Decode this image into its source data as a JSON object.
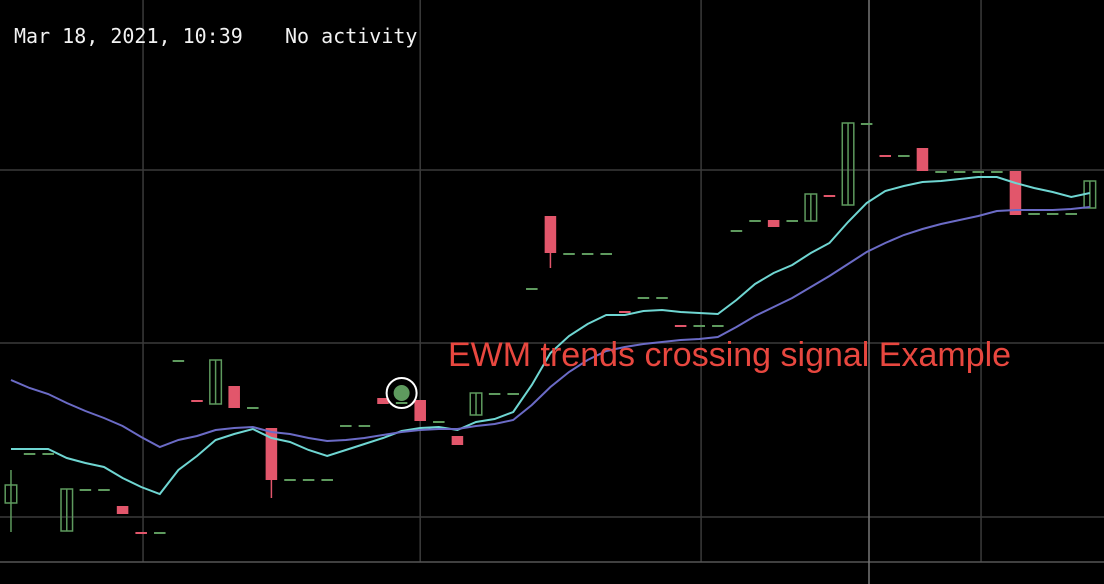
{
  "chart_data": {
    "type": "candlestick",
    "title": "Mar 18, 2021, 10:39",
    "status": "No activity",
    "annotation": "EWM trends crossing signal Example",
    "x": [
      0,
      1,
      2,
      3,
      4,
      5,
      6,
      7,
      8,
      9,
      10,
      11,
      12,
      13,
      14,
      15,
      16,
      17,
      18,
      19,
      20,
      21,
      22,
      23,
      24,
      25,
      26,
      27,
      28,
      29,
      30,
      31,
      32,
      33,
      34,
      35,
      36,
      37,
      38,
      39,
      40,
      41,
      42,
      43,
      44,
      45,
      46,
      47,
      48,
      49,
      50,
      51,
      52,
      53,
      54,
      55,
      56,
      57,
      58
    ],
    "open": [
      81,
      131,
      131,
      53,
      95,
      95,
      78,
      52,
      52,
      224,
      184,
      180,
      198,
      177,
      156,
      105,
      105,
      105,
      159,
      159,
      186,
      182,
      184,
      163,
      148,
      169,
      191,
      191,
      296,
      368,
      331,
      331,
      331,
      273,
      287,
      287,
      259,
      259,
      259,
      354,
      364,
      364,
      364,
      363,
      389,
      379,
      461,
      429,
      429,
      436,
      413,
      413,
      413,
      413,
      413,
      371,
      371,
      371,
      376
    ],
    "high": [
      114,
      131,
      131,
      95,
      95,
      95,
      78,
      52,
      52,
      224,
      184,
      224,
      198,
      177,
      156,
      105,
      105,
      105,
      159,
      159,
      186,
      182,
      184,
      163,
      148,
      191,
      191,
      191,
      296,
      368,
      331,
      331,
      331,
      273,
      287,
      287,
      259,
      259,
      259,
      354,
      364,
      364,
      364,
      390,
      389,
      461,
      461,
      429,
      429,
      436,
      413,
      413,
      413,
      413,
      413,
      371,
      371,
      371,
      403
    ],
    "low": [
      52,
      131,
      131,
      53,
      95,
      95,
      70,
      52,
      52,
      224,
      184,
      180,
      176,
      177,
      86,
      105,
      105,
      105,
      159,
      159,
      180,
      182,
      163,
      163,
      139,
      169,
      191,
      191,
      296,
      316,
      331,
      331,
      331,
      273,
      287,
      287,
      259,
      259,
      259,
      354,
      364,
      357,
      364,
      363,
      389,
      379,
      461,
      429,
      429,
      413,
      413,
      413,
      413,
      413,
      369,
      371,
      371,
      371,
      376
    ],
    "close": [
      99,
      131,
      131,
      95,
      95,
      95,
      70,
      52,
      52,
      224,
      184,
      224,
      176,
      177,
      104,
      105,
      105,
      105,
      159,
      159,
      180,
      182,
      163,
      163,
      139,
      191,
      191,
      191,
      296,
      331,
      331,
      331,
      331,
      273,
      287,
      287,
      259,
      259,
      259,
      354,
      364,
      357,
      364,
      390,
      389,
      461,
      461,
      429,
      429,
      413,
      413,
      413,
      413,
      413,
      369,
      371,
      371,
      371,
      403
    ],
    "up_color": "#5e9a5e",
    "down_color": "#e2566b",
    "series": [
      {
        "color": "#6fd6d2",
        "values": [
          135,
          135,
          135,
          126,
          121,
          117,
          106,
          97,
          90,
          114,
          128,
          144,
          150,
          155,
          146,
          142,
          134,
          128,
          134,
          140,
          146,
          153,
          156,
          157,
          154,
          162,
          165,
          172,
          199,
          231,
          248,
          260,
          269,
          269,
          273,
          274,
          272,
          271,
          270,
          284,
          300,
          311,
          319,
          331,
          341,
          362,
          381,
          393,
          398,
          402,
          403,
          405,
          407,
          407,
          401,
          396,
          392,
          387,
          391
        ]
      },
      {
        "color": "#6b6bc6",
        "values": [
          204,
          196,
          190,
          181,
          173,
          166,
          158,
          147,
          137,
          144,
          148,
          154,
          156,
          157,
          152,
          150,
          146,
          143,
          144,
          146,
          149,
          152,
          154,
          155,
          155,
          158,
          160,
          164,
          179,
          197,
          212,
          224,
          233,
          237,
          240,
          242,
          244,
          245,
          247,
          257,
          268,
          277,
          286,
          297,
          308,
          320,
          332,
          341,
          349,
          355,
          360,
          364,
          368,
          373,
          374,
          374,
          374,
          375,
          377
        ]
      }
    ],
    "signal": {
      "x": 21,
      "value": 191,
      "color": "#5e9a5e"
    },
    "xlim": [
      -0.59,
      58.76
    ],
    "ylim": [
      0,
      584
    ],
    "xticks": [
      7.1,
      22,
      37.1,
      52.15
    ],
    "yticks": [
      414,
      241,
      67
    ],
    "grid": true
  }
}
